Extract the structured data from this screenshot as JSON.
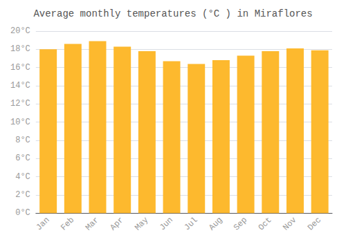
{
  "chart_data": {
    "type": "bar",
    "title": "Average monthly temperatures (°C ) in Miraflores",
    "categories": [
      "Jan",
      "Feb",
      "Mar",
      "Apr",
      "May",
      "Jun",
      "Jul",
      "Aug",
      "Sep",
      "Oct",
      "Nov",
      "Dec"
    ],
    "values": [
      18.0,
      18.6,
      18.9,
      18.3,
      17.8,
      16.7,
      16.4,
      16.8,
      17.3,
      17.8,
      18.1,
      17.9
    ],
    "color": "#FDB92E",
    "ylim": [
      0,
      20
    ],
    "yticks": [
      {
        "value": 0,
        "label": "0°C"
      },
      {
        "value": 2,
        "label": "2°C"
      },
      {
        "value": 4,
        "label": "4°C"
      },
      {
        "value": 6,
        "label": "6°C"
      },
      {
        "value": 8,
        "label": "8°C"
      },
      {
        "value": 10,
        "label": "10°C"
      },
      {
        "value": 12,
        "label": "12°C"
      },
      {
        "value": 14,
        "label": "14°C"
      },
      {
        "value": 16,
        "label": "16°C"
      },
      {
        "value": 18,
        "label": "18°C"
      },
      {
        "value": 20,
        "label": "20°C"
      }
    ],
    "grid": true
  }
}
